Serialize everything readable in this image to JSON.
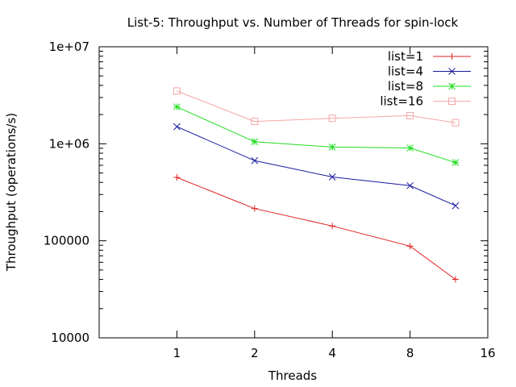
{
  "chart_data": {
    "type": "line",
    "title": "List-5: Throughput vs. Number of Threads for spin-lock",
    "xlabel": "Threads",
    "ylabel": "Throughput (operations/s)",
    "x_scale": "log2",
    "y_scale": "log10",
    "xlim": [
      0.5,
      16
    ],
    "ylim": [
      10000,
      10000000
    ],
    "x_ticks": [
      1,
      2,
      4,
      8,
      16
    ],
    "x_tick_labels": [
      "1",
      "2",
      "4",
      "8",
      "16"
    ],
    "y_ticks": [
      10000,
      100000,
      1000000,
      10000000
    ],
    "y_tick_labels": [
      "10000",
      "100000",
      "1e+06",
      "1e+07"
    ],
    "x": [
      1,
      2,
      4,
      8,
      12
    ],
    "legend_position": "top-right",
    "grid": false,
    "series": [
      {
        "name": "list=1",
        "color": "#e02020",
        "marker": "plus",
        "values": [
          450000,
          215000,
          142000,
          88000,
          40000
        ]
      },
      {
        "name": "list=4",
        "color": "#1a1aa0",
        "marker": "cross",
        "values": [
          1500000,
          670000,
          455000,
          370000,
          230000
        ]
      },
      {
        "name": "list=8",
        "color": "#20dd20",
        "marker": "star",
        "values": [
          2400000,
          1050000,
          925000,
          905000,
          640000
        ]
      },
      {
        "name": "list=16",
        "color": "#f4a6a6",
        "marker": "square",
        "values": [
          3500000,
          1700000,
          1830000,
          1950000,
          1650000
        ]
      }
    ]
  }
}
